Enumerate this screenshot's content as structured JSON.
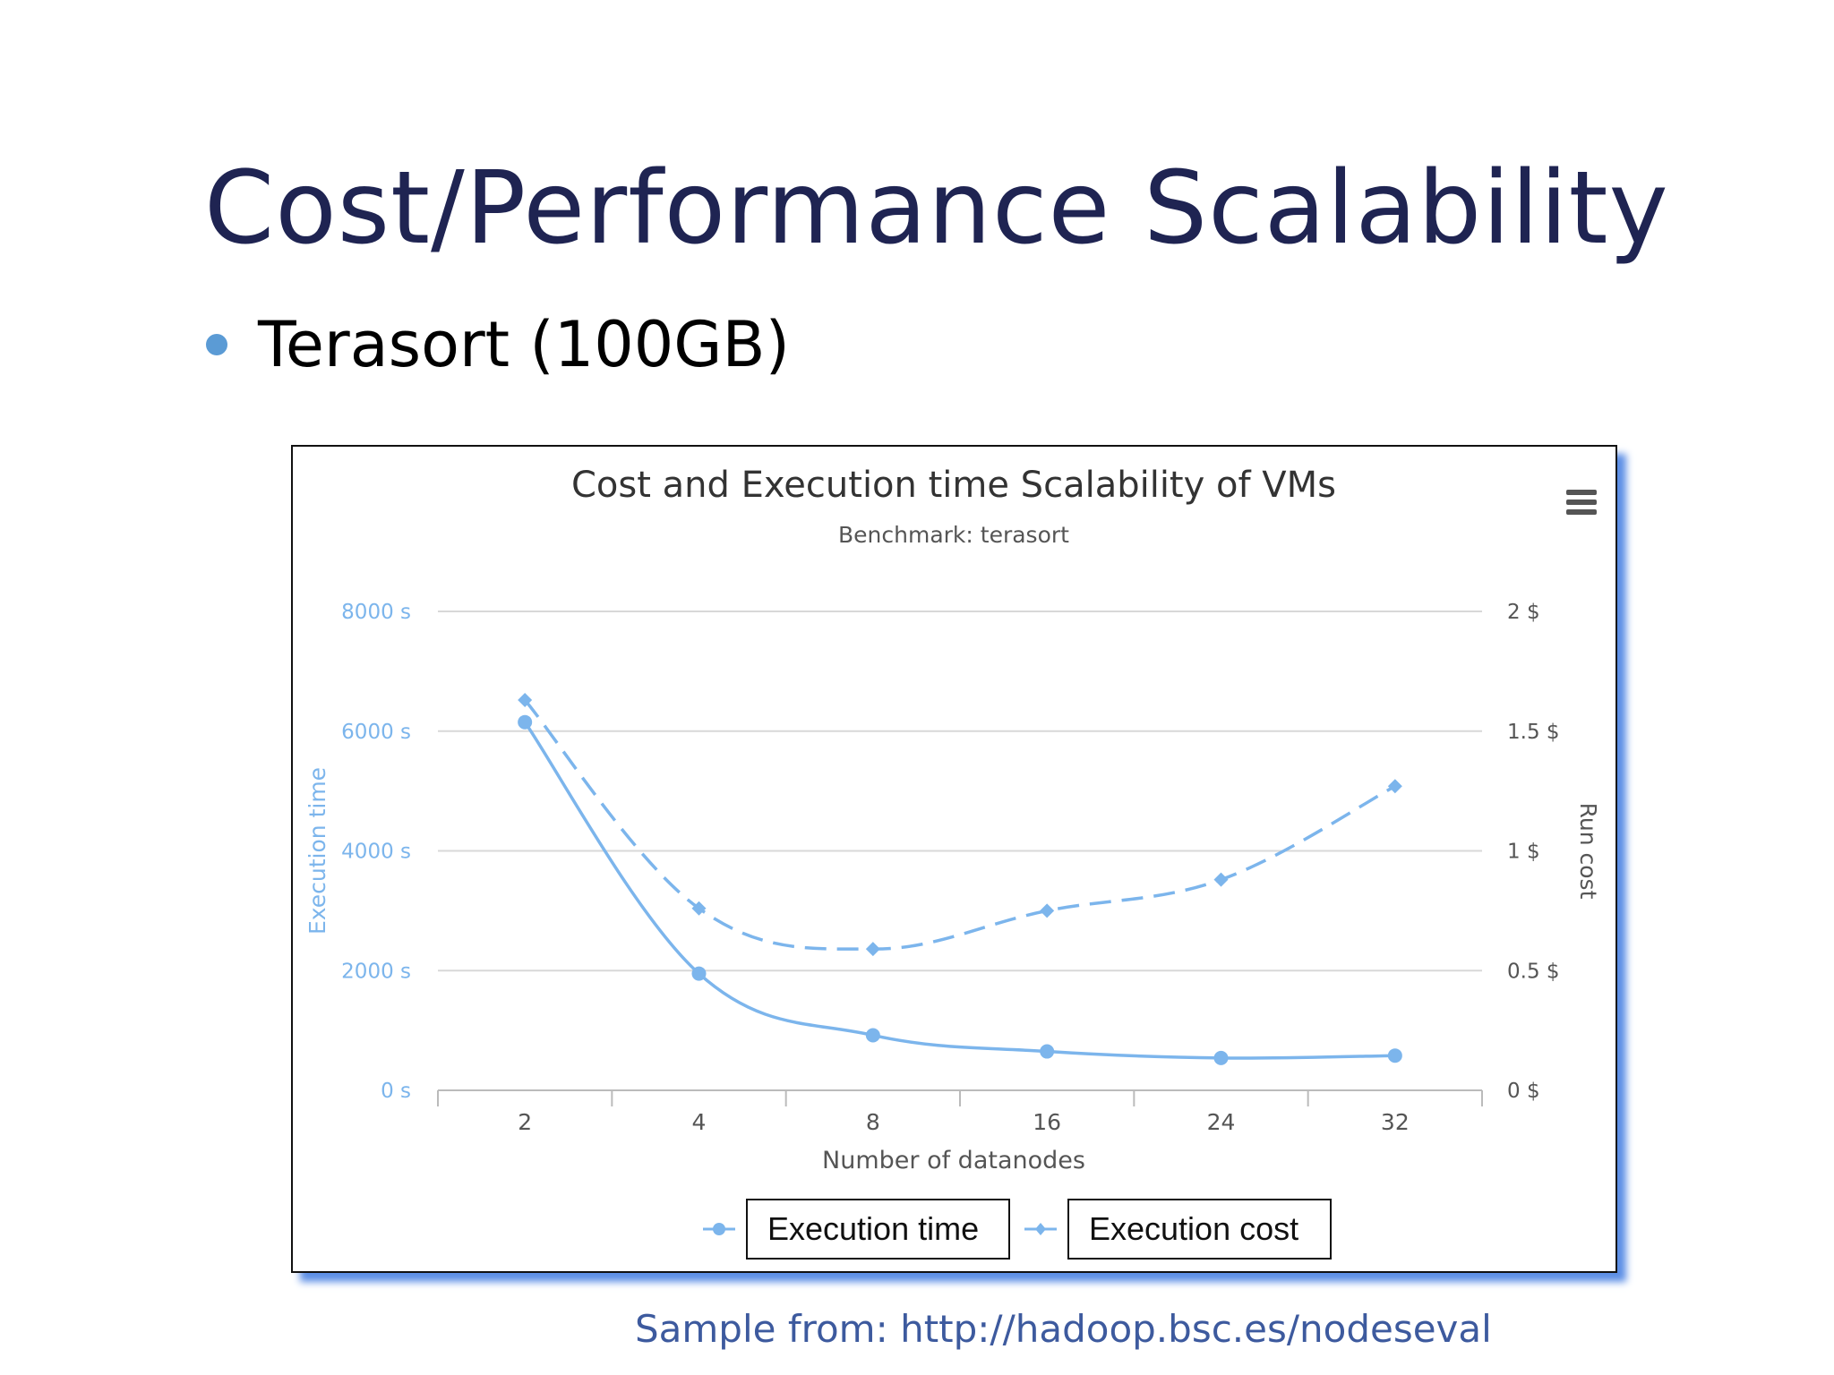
{
  "slide": {
    "title": "Cost/Performance Scalability",
    "bullet": "Terasort (100GB)",
    "source_note": "Sample from:  http://hadoop.bsc.es/nodeseval"
  },
  "chart_data": {
    "type": "line",
    "title": "Cost and Execution time Scalability of VMs",
    "subtitle": "Benchmark: terasort",
    "xlabel": "Number of datanodes",
    "categories": [
      "2",
      "4",
      "8",
      "16",
      "24",
      "32"
    ],
    "y_left": {
      "label": "Execution time",
      "ticks": [
        "0 s",
        "2000 s",
        "4000 s",
        "6000 s",
        "8000 s"
      ],
      "range": [
        0,
        8000
      ]
    },
    "y_right": {
      "label": "Run cost",
      "ticks": [
        "0 $",
        "0.5 $",
        "1 $",
        "1.5 $",
        "2 $"
      ],
      "range": [
        0,
        2
      ]
    },
    "series": [
      {
        "name": "Execution time",
        "axis": "left",
        "style": "solid",
        "marker": "circle",
        "color": "#7cb5ec",
        "values": [
          6150,
          1950,
          920,
          650,
          540,
          580
        ]
      },
      {
        "name": "Execution cost",
        "axis": "right",
        "style": "dashed",
        "marker": "diamond",
        "color": "#7cb5ec",
        "values": [
          1.63,
          0.76,
          0.59,
          0.75,
          0.88,
          1.27
        ]
      }
    ],
    "grid": true,
    "legend_position": "bottom-center"
  },
  "colors": {
    "title": "#1f2452",
    "left_axis": "#7cb5ec",
    "right_axis": "#555555",
    "frame_shadow": "#5d8fe6",
    "source_link": "#3d5a9e"
  }
}
